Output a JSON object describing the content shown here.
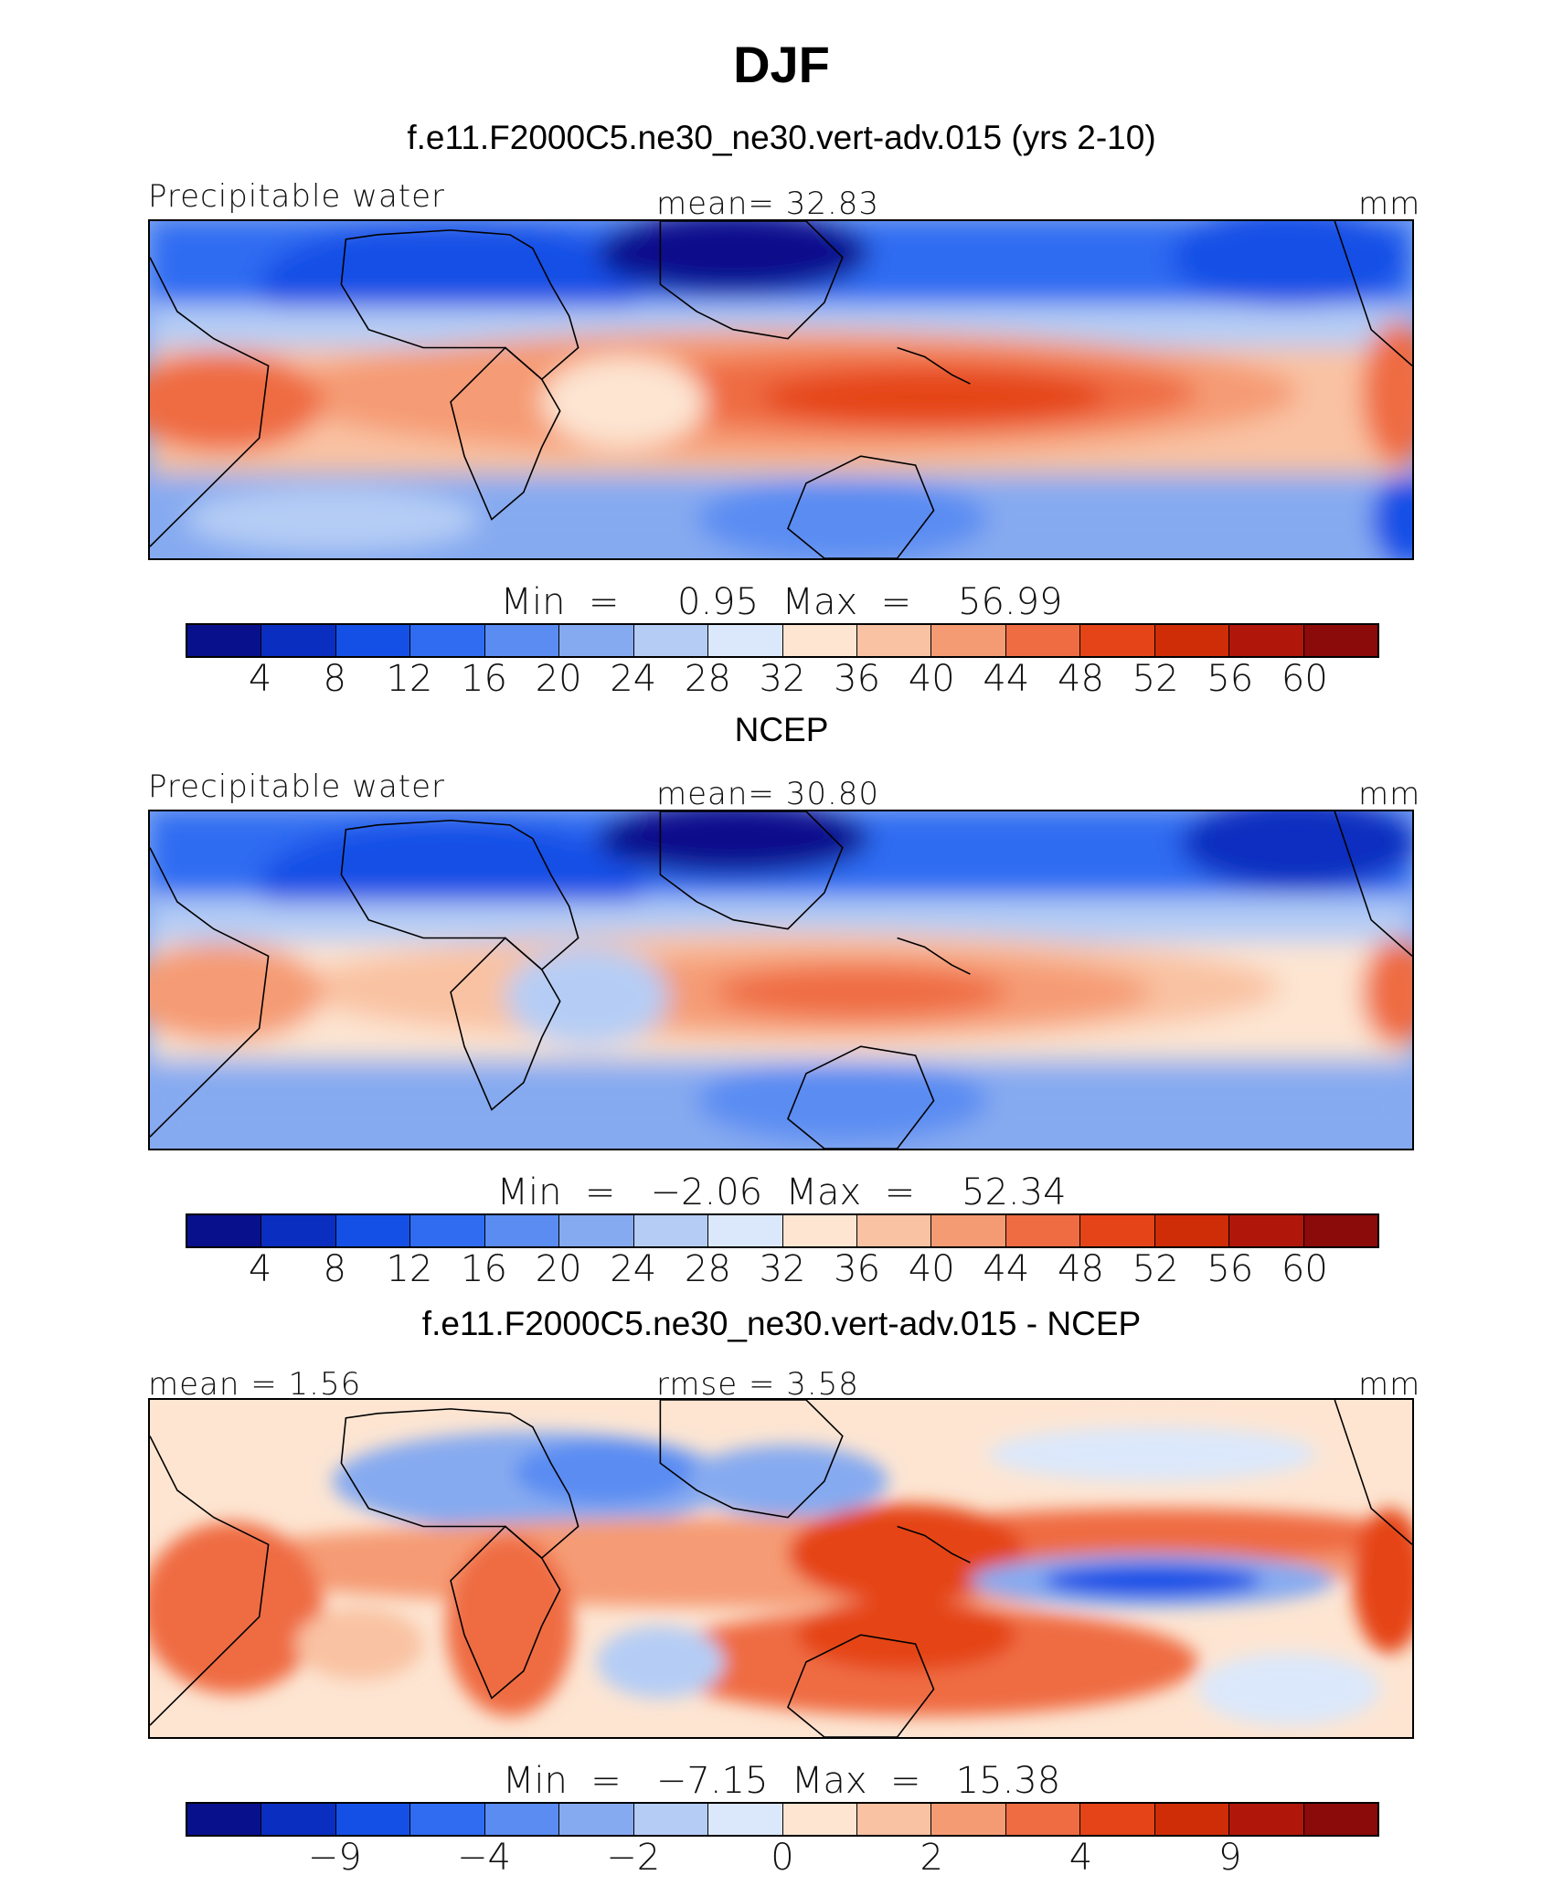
{
  "figure": {
    "title": "DJF"
  },
  "palette": [
    "#08108c",
    "#0a2fc0",
    "#1550e6",
    "#2f6cf2",
    "#5a8cf2",
    "#86aaf0",
    "#b5cdf5",
    "#dbe8fb",
    "#fde5d2",
    "#f9c2a3",
    "#f59b74",
    "#ef6c43",
    "#e54418",
    "#cf2d08",
    "#b0170a",
    "#8b0a0a"
  ],
  "panels": [
    {
      "title": "f.e11.F2000C5.ne30_ne30.vert-adv.015 (yrs 2-10)",
      "left_label": "Precipitable water",
      "center_label": "mean=  32.83",
      "right_label": "mm",
      "minmax_label": "Min  =     0.95  Max  =    56.99",
      "colorbar_ticks": [
        "4",
        "8",
        "12",
        "16",
        "20",
        "24",
        "28",
        "32",
        "36",
        "40",
        "44",
        "48",
        "52",
        "56",
        "60"
      ]
    },
    {
      "title": "NCEP",
      "left_label": "Precipitable water",
      "center_label": "mean=  30.80",
      "right_label": "mm",
      "minmax_label": "Min  =   −2.06  Max  =    52.34",
      "colorbar_ticks": [
        "4",
        "8",
        "12",
        "16",
        "20",
        "24",
        "28",
        "32",
        "36",
        "40",
        "44",
        "48",
        "52",
        "56",
        "60"
      ]
    },
    {
      "title": "f.e11.F2000C5.ne30_ne30.vert-adv.015 - NCEP",
      "left_label": "mean  =   1.56",
      "center_label": "rmse  =   3.58",
      "right_label": "mm",
      "minmax_label": "Min  =   −7.15  Max  =   15.38",
      "colorbar_ticks": [
        "",
        "−9",
        "",
        "−4",
        "",
        "−2",
        "",
        "0",
        "",
        "2",
        "",
        "4",
        "",
        "9",
        ""
      ]
    }
  ],
  "chart_data": [
    {
      "type": "heatmap",
      "title": "f.e11.F2000C5.ne30_ne30.vert-adv.015 (yrs 2-10)",
      "variable": "Precipitable water",
      "units": "mm",
      "mean": 32.83,
      "min": 0.95,
      "max": 56.99,
      "levels": [
        4,
        8,
        12,
        16,
        20,
        24,
        28,
        32,
        36,
        40,
        44,
        48,
        52,
        56,
        60
      ]
    },
    {
      "type": "heatmap",
      "title": "NCEP",
      "variable": "Precipitable water",
      "units": "mm",
      "mean": 30.8,
      "min": -2.06,
      "max": 52.34,
      "levels": [
        4,
        8,
        12,
        16,
        20,
        24,
        28,
        32,
        36,
        40,
        44,
        48,
        52,
        56,
        60
      ]
    },
    {
      "type": "heatmap",
      "title": "f.e11.F2000C5.ne30_ne30.vert-adv.015 - NCEP",
      "units": "mm",
      "mean": 1.56,
      "rmse": 3.58,
      "min": -7.15,
      "max": 15.38,
      "levels_labeled": [
        -9,
        -4,
        -2,
        0,
        2,
        4,
        9
      ]
    }
  ]
}
